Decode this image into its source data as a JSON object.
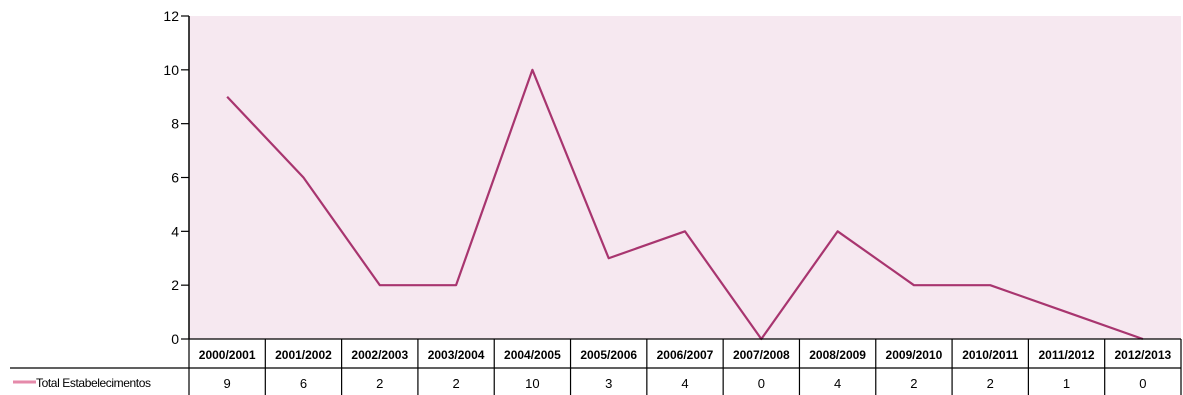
{
  "chart_data": {
    "type": "line",
    "title": "",
    "xlabel": "",
    "ylabel": "",
    "ylim": [
      0,
      12
    ],
    "yticks": [
      0,
      2,
      4,
      6,
      8,
      10,
      12
    ],
    "grid": false,
    "legend": "bottom-left data table",
    "categories": [
      "2000/2001",
      "2001/2002",
      "2002/2003",
      "2003/2004",
      "2004/2005",
      "2005/2006",
      "2006/2007",
      "2007/2008",
      "2008/2009",
      "2009/2010",
      "2010/2011",
      "2011/2012",
      "2012/2013"
    ],
    "series": [
      {
        "name": "Total Estabelecimentos",
        "values": [
          9,
          6,
          2,
          2,
          10,
          3,
          4,
          0,
          4,
          2,
          2,
          1,
          0
        ]
      }
    ],
    "colors": {
      "plot_background": "#f6e8f0",
      "series_line": "#a8356f",
      "legend_key": "#e58aaa"
    }
  }
}
